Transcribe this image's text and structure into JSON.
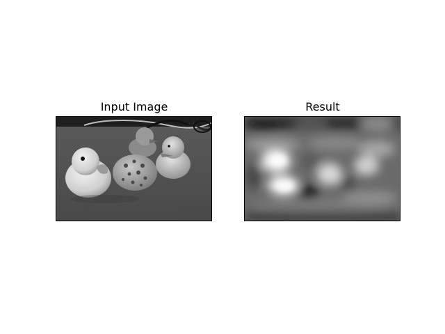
{
  "figure": {
    "input_title": "Input Image",
    "result_title": "Result"
  },
  "images": {
    "input": "grayscale photo of two rubber ducks and a small spotted stone on a textured surface",
    "result": "blurred filtered grayscale version of the input image"
  }
}
